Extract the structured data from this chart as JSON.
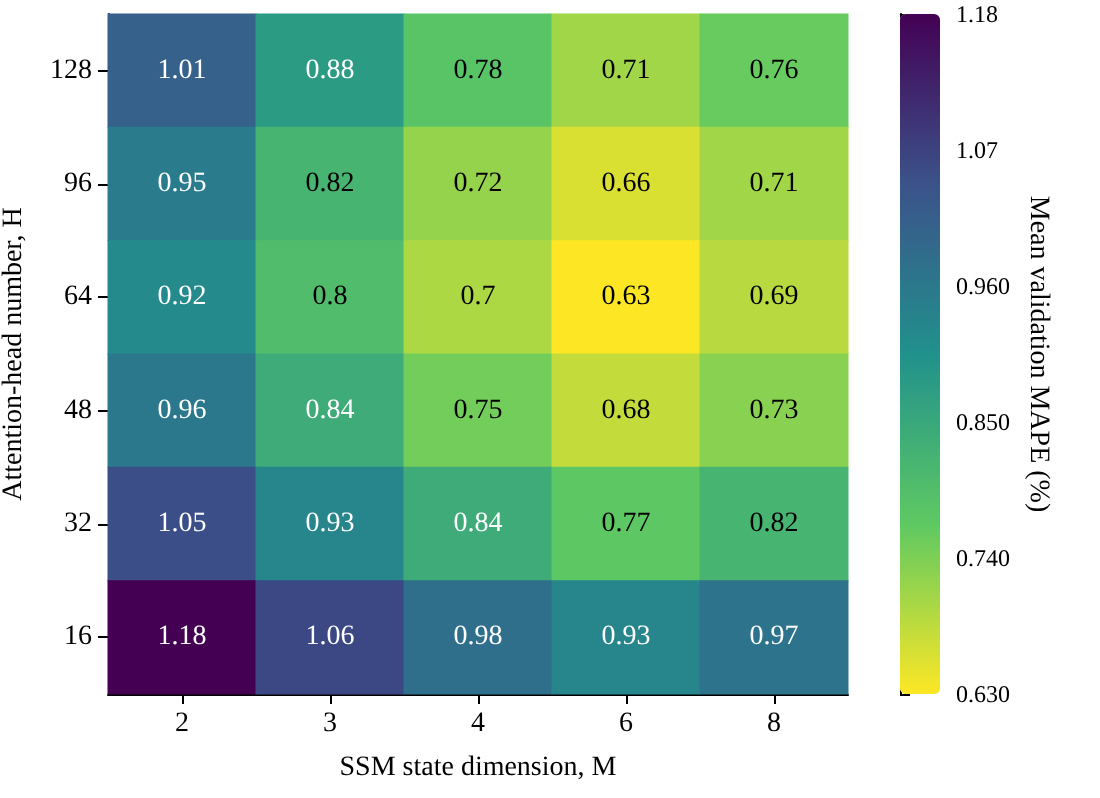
{
  "chart_data": {
    "type": "heatmap",
    "xlabel": "SSM state dimension, M",
    "ylabel": "Attention-head number, H",
    "clabel": "Mean validation MAPE (%)",
    "categories": [
      "2",
      "3",
      "4",
      "6",
      "8"
    ],
    "y_categories": [
      "128",
      "96",
      "64",
      "48",
      "32",
      "16"
    ],
    "cells": [
      [
        1.01,
        0.88,
        0.78,
        0.71,
        0.76
      ],
      [
        0.95,
        0.82,
        0.72,
        0.66,
        0.71
      ],
      [
        0.92,
        0.8,
        0.7,
        0.63,
        0.69
      ],
      [
        0.96,
        0.84,
        0.75,
        0.68,
        0.73
      ],
      [
        1.05,
        0.93,
        0.84,
        0.77,
        0.82
      ],
      [
        1.18,
        1.06,
        0.98,
        0.93,
        0.97
      ]
    ],
    "clim": [
      0.63,
      1.18
    ],
    "cticks": [
      {
        "value": 0.63,
        "label": "0.630"
      },
      {
        "value": 0.74,
        "label": "0.740"
      },
      {
        "value": 0.85,
        "label": "0.850"
      },
      {
        "value": 0.96,
        "label": "0.960"
      },
      {
        "value": 1.07,
        "label": "1.07"
      },
      {
        "value": 1.18,
        "label": "1.18"
      }
    ],
    "data_labels": true
  }
}
